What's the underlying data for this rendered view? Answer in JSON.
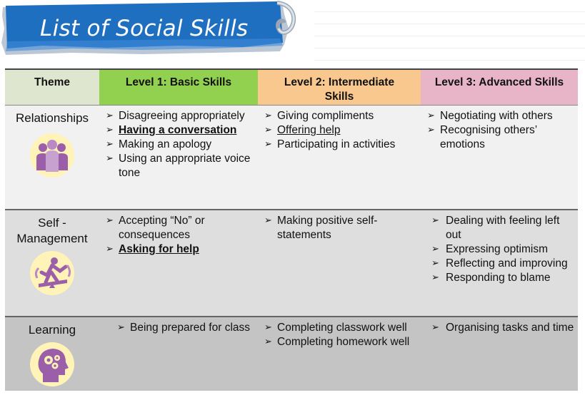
{
  "banner": {
    "title": "List of Social Skills"
  },
  "table": {
    "headers": {
      "theme": "Theme",
      "level1": "Level 1: Basic Skills",
      "level2_line1": "Level 2: Intermediate",
      "level2_line2": "Skills",
      "level3": "Level 3: Advanced Skills"
    },
    "rows": [
      {
        "theme": "Relationships",
        "icon": "people-group-icon",
        "level1": [
          "Disagreeing appropriately",
          "Having a conversation",
          "Making an apology",
          "Using an appropriate voice tone"
        ],
        "level2": [
          "Giving compliments",
          "Offering help",
          "Participating in activities"
        ],
        "level3": [
          "Negotiating with others",
          "Recognising others’ emotions"
        ]
      },
      {
        "theme_line1": "Self -",
        "theme_line2": "Management",
        "icon": "balance-person-icon",
        "level1": [
          "Accepting “No” or consequences",
          "Asking for help"
        ],
        "level2": [
          "Making positive self-statements"
        ],
        "level3": [
          "Dealing with feeling left out",
          "Expressing optimism",
          "Reflecting and improving",
          "Responding to blame"
        ]
      },
      {
        "theme": "Learning",
        "icon": "head-gears-icon",
        "level1": [
          "Being prepared for class"
        ],
        "level2": [
          "Completing classwork well",
          "Completing homework well"
        ],
        "level3": [
          "Organising tasks and time"
        ]
      }
    ]
  },
  "colors": {
    "banner_blue": "#1f6fc0",
    "header_theme": "#dfe6cf",
    "header_level1": "#92d050",
    "header_level2": "#f8c88e",
    "header_level3": "#e8b4c8",
    "icon_purple": "#9b5ea9",
    "icon_bg": "#fff3b8"
  }
}
